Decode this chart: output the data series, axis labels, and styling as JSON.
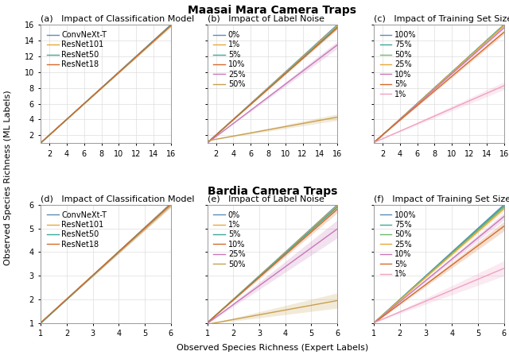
{
  "title_top": "Maasai Mara Camera Traps",
  "title_bottom": "Bardia Camera Traps",
  "xlabel": "Observed Species Richness (Expert Labels)",
  "ylabel": "Observed Species Richness (ML Labels)",
  "maasai_xlim": [
    1,
    16
  ],
  "maasai_ylim": [
    1,
    16
  ],
  "bardia_xlim": [
    1,
    6
  ],
  "bardia_ylim": [
    1,
    6
  ],
  "maasai_xticks": [
    2,
    4,
    6,
    8,
    10,
    12,
    14,
    16
  ],
  "maasai_yticks": [
    2,
    4,
    6,
    8,
    10,
    12,
    14,
    16
  ],
  "bardia_xticks": [
    1,
    2,
    3,
    4,
    5,
    6
  ],
  "bardia_yticks": [
    1,
    2,
    3,
    4,
    5,
    6
  ],
  "panel_labels": [
    "(a)",
    "(b)",
    "(c)",
    "(d)",
    "(e)",
    "(f)"
  ],
  "panel_titles": [
    "Impact of Classification Model",
    "Impact of Label Noise",
    "Impact of Training Set Size",
    "Impact of Classification Model",
    "Impact of Label Noise",
    "Impact of Training Set Size"
  ],
  "model_labels": [
    "ConvNeXt-T",
    "ResNet101",
    "ResNet50",
    "ResNet18"
  ],
  "model_colors": [
    "#5B8DB8",
    "#E8A838",
    "#3DA897",
    "#D46B2A"
  ],
  "model_slopes_maasai": [
    1.0,
    0.99,
    0.995,
    0.99
  ],
  "model_intercepts_maasai": [
    0.02,
    0.05,
    0.03,
    0.07
  ],
  "model_spread_maasai": [
    0.12,
    0.15,
    0.13,
    0.16
  ],
  "model_slopes_bardia": [
    1.01,
    1.0,
    1.005,
    1.0
  ],
  "model_intercepts_bardia": [
    -0.02,
    0.0,
    -0.01,
    0.02
  ],
  "model_spread_bardia": [
    0.06,
    0.1,
    0.08,
    0.13
  ],
  "noise_labels": [
    "0%",
    "1%",
    "5%",
    "10%",
    "25%",
    "50%"
  ],
  "noise_colors": [
    "#5B8DB8",
    "#E8A838",
    "#3DA897",
    "#D46B2A",
    "#C878B8",
    "#C8A050"
  ],
  "noise_slopes_maasai": [
    1.0,
    0.99,
    0.98,
    0.97,
    0.83,
    0.2
  ],
  "noise_intercepts_maasai": [
    0.02,
    0.05,
    0.06,
    0.08,
    0.18,
    1.1
  ],
  "noise_spread_maasai": [
    0.08,
    0.1,
    0.12,
    0.16,
    0.45,
    0.4
  ],
  "noise_slopes_bardia": [
    1.0,
    0.99,
    0.98,
    0.96,
    0.8,
    0.2
  ],
  "noise_intercepts_bardia": [
    0.0,
    0.02,
    0.03,
    0.05,
    0.18,
    0.75
  ],
  "noise_spread_bardia": [
    0.06,
    0.08,
    0.1,
    0.15,
    0.38,
    0.32
  ],
  "size_labels": [
    "100%",
    "75%",
    "50%",
    "25%",
    "10%",
    "5%",
    "1%"
  ],
  "size_colors": [
    "#5B8DB8",
    "#3DA897",
    "#6DB86B",
    "#E8A838",
    "#C878B8",
    "#D46B2A",
    "#F0A0C0"
  ],
  "size_slopes_maasai": [
    1.0,
    0.998,
    0.995,
    0.99,
    0.97,
    0.93,
    0.48
  ],
  "size_intercepts_maasai": [
    0.02,
    0.03,
    0.04,
    0.06,
    0.1,
    0.18,
    0.6
  ],
  "size_spread_maasai": [
    0.08,
    0.1,
    0.12,
    0.15,
    0.2,
    0.28,
    0.5
  ],
  "size_slopes_bardia": [
    1.0,
    0.99,
    0.98,
    0.965,
    0.9,
    0.82,
    0.46
  ],
  "size_intercepts_bardia": [
    0.0,
    0.01,
    0.02,
    0.04,
    0.1,
    0.17,
    0.55
  ],
  "size_spread_bardia": [
    0.04,
    0.06,
    0.08,
    0.1,
    0.15,
    0.2,
    0.32
  ],
  "bg_color": "#FFFFFF",
  "grid_color": "#DDDDDD",
  "title_fontsize": 10,
  "panel_title_fontsize": 8,
  "label_fontsize": 8,
  "legend_fontsize": 7,
  "tick_fontsize": 7
}
